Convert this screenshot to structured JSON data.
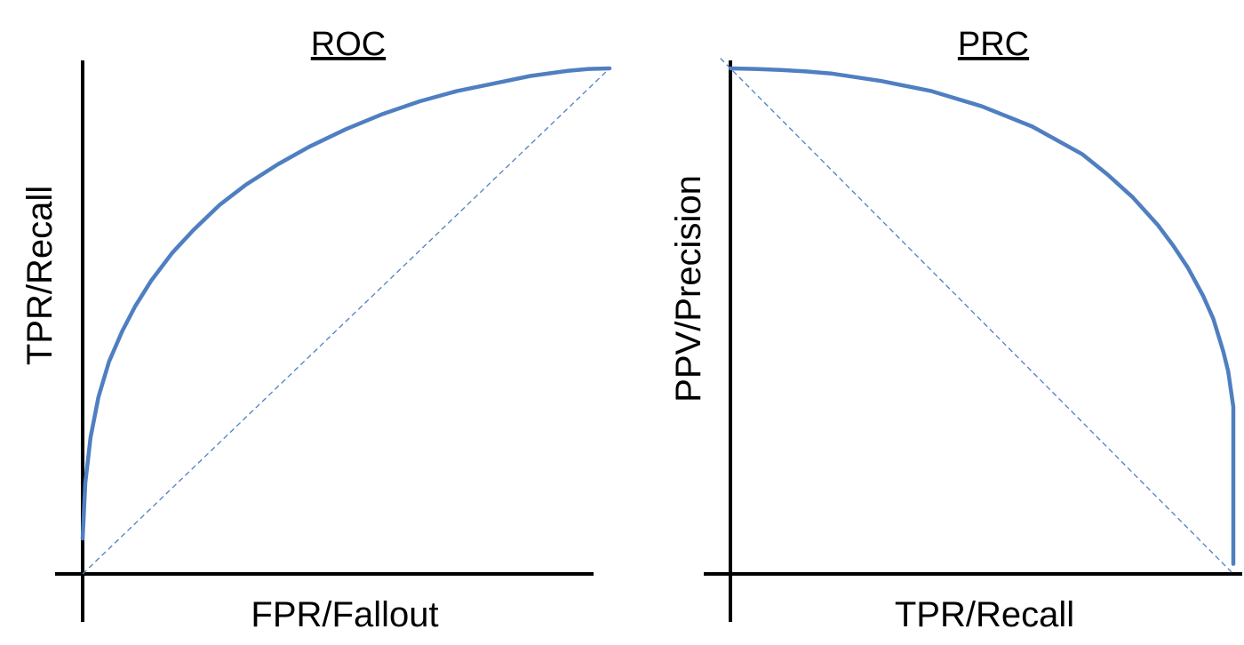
{
  "colors": {
    "curve": "#4f7fc1",
    "baseline": "#4f7fc1",
    "axis": "#000000",
    "text": "#000000"
  },
  "chart_data": [
    {
      "type": "line",
      "title": "ROC",
      "xlabel": "FPR/Fallout",
      "ylabel": "TPR/Recall",
      "xlim": [
        0,
        1
      ],
      "ylim": [
        0,
        1
      ],
      "ticks": false,
      "grid": false,
      "legend": "none",
      "series": [
        {
          "x": [
            0.0,
            0.005,
            0.015,
            0.03,
            0.05,
            0.075,
            0.1,
            0.13,
            0.17,
            0.21,
            0.26,
            0.31,
            0.37,
            0.43,
            0.5,
            0.57,
            0.64,
            0.71,
            0.78,
            0.85,
            0.92,
            0.96,
            1.0
          ],
          "y": [
            0.07,
            0.18,
            0.27,
            0.35,
            0.42,
            0.48,
            0.53,
            0.58,
            0.635,
            0.68,
            0.73,
            0.77,
            0.81,
            0.845,
            0.88,
            0.91,
            0.935,
            0.955,
            0.97,
            0.985,
            0.995,
            0.999,
            1.0
          ],
          "style": "solid"
        },
        {
          "x": [
            0,
            1
          ],
          "y": [
            0,
            1
          ],
          "style": "dashed"
        }
      ]
    },
    {
      "type": "line",
      "title": "PRC",
      "xlabel": "TPR/Recall",
      "ylabel": "PPV/Precision",
      "xlim": [
        0,
        1
      ],
      "ylim": [
        0,
        1
      ],
      "ticks": false,
      "grid": false,
      "legend": "none",
      "series": [
        {
          "x": [
            0.0,
            0.05,
            0.1,
            0.15,
            0.2,
            0.3,
            0.4,
            0.5,
            0.6,
            0.7,
            0.75,
            0.8,
            0.85,
            0.88,
            0.91,
            0.94,
            0.96,
            0.98,
            0.99,
            1.0,
            1.0
          ],
          "y": [
            1.0,
            0.999,
            0.997,
            0.994,
            0.99,
            0.975,
            0.955,
            0.925,
            0.885,
            0.83,
            0.79,
            0.745,
            0.69,
            0.65,
            0.605,
            0.55,
            0.505,
            0.44,
            0.4,
            0.33,
            0.02
          ],
          "style": "solid"
        },
        {
          "x": [
            0,
            1
          ],
          "y": [
            1,
            0
          ],
          "style": "dashed"
        }
      ]
    }
  ]
}
